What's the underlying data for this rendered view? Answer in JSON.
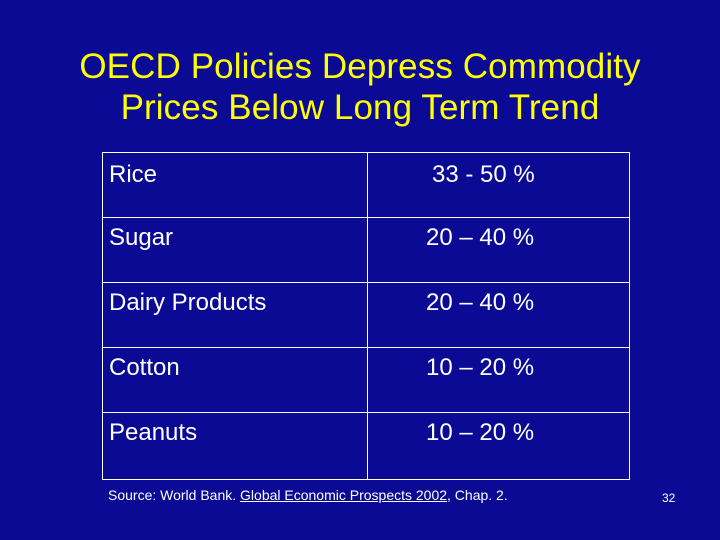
{
  "slide": {
    "title_line_1": "OECD Policies Depress Commodity",
    "title_line_2": "Prices Below Long Term Trend",
    "rows": [
      {
        "commodity": "Rice",
        "range": "33 - 50 %"
      },
      {
        "commodity": "Sugar",
        "range": "20 – 40 %"
      },
      {
        "commodity": "Dairy Products",
        "range": "20 – 40 %"
      },
      {
        "commodity": "Cotton",
        "range": "10 – 20 %"
      },
      {
        "commodity": "Peanuts",
        "range": "10 – 20 %"
      }
    ],
    "source_prefix": "Source: World Bank. ",
    "source_title": "Global Economic Prospects 2002",
    "source_suffix": ", Chap. 2.",
    "page_number": "32"
  },
  "colors": {
    "background": "#0a0a95",
    "title": "#ffff00",
    "text": "#ffffff",
    "lines": "#ffffff"
  }
}
